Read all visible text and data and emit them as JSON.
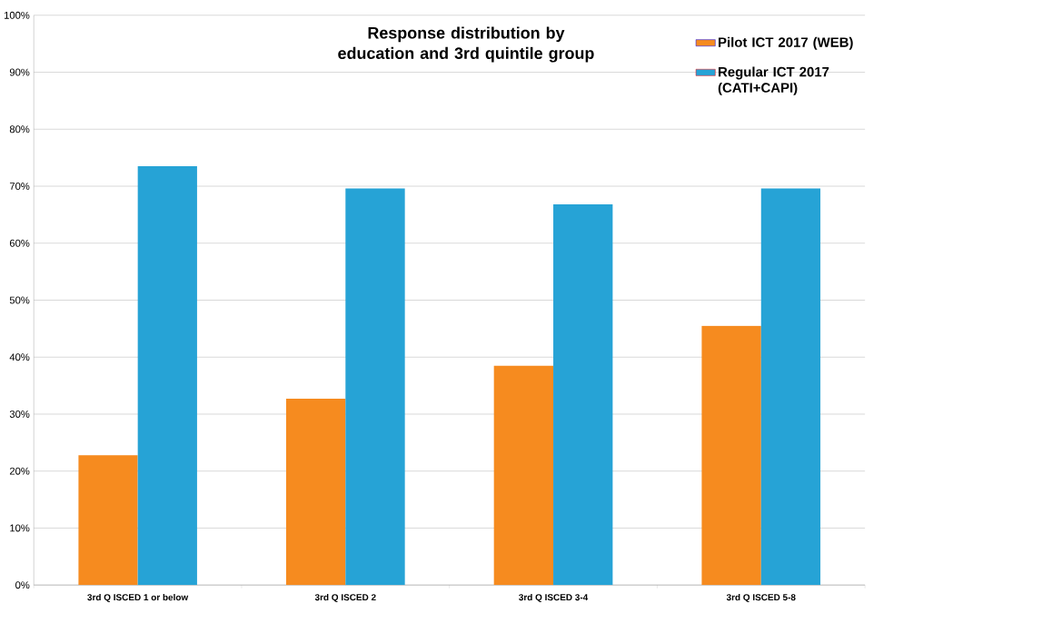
{
  "chart_data": {
    "type": "bar",
    "title": "Response distribution by education and 3rd quintile group",
    "categories": [
      "3rd Q ISCED 1 or below",
      "3rd Q ISCED 2",
      "3rd Q ISCED 3-4",
      "3rd Q ISCED 5-8"
    ],
    "series": [
      {
        "name": "Pilot ICT 2017 (WEB)",
        "color": "#f68b1f",
        "values": [
          22.8,
          32.7,
          38.5,
          45.5
        ]
      },
      {
        "name": "Regular ICT 2017 (CATI+CAPI)",
        "color": "#26a3d6",
        "values": [
          73.5,
          69.6,
          66.8,
          69.6
        ]
      }
    ],
    "ylim": [
      0,
      100
    ],
    "yticks": [
      {
        "value": 0,
        "label": "0%"
      },
      {
        "value": 10,
        "label": "10%"
      },
      {
        "value": 20,
        "label": "20%"
      },
      {
        "value": 30,
        "label": "30%"
      },
      {
        "value": 40,
        "label": "40%"
      },
      {
        "value": 50,
        "label": "50%"
      },
      {
        "value": 60,
        "label": "60%"
      },
      {
        "value": 70,
        "label": "70%"
      },
      {
        "value": 80,
        "label": "80%"
      },
      {
        "value": 90,
        "label": "90%"
      },
      {
        "value": 100,
        "label": "100%"
      }
    ],
    "grid": "y",
    "legend": "top right"
  }
}
